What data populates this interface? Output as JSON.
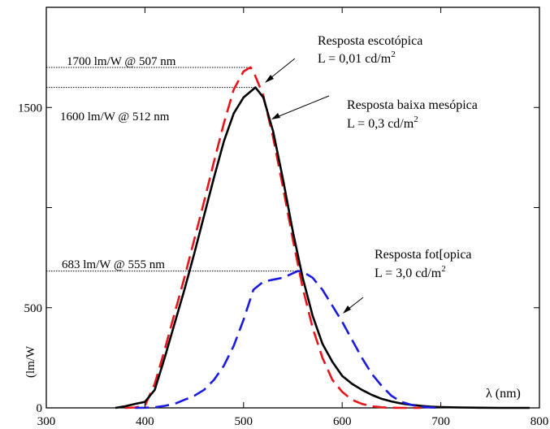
{
  "chart_data": {
    "type": "line",
    "title": "",
    "xlabel": "λ (nm)",
    "ylabel": "(lm/W",
    "xlim": [
      300,
      800
    ],
    "ylim": [
      0,
      2000
    ],
    "x_ticks": [
      300,
      400,
      500,
      600,
      700,
      800
    ],
    "y_ticks": [
      0,
      500,
      1500
    ],
    "grid": false,
    "series": [
      {
        "name": "Resposta escotópica",
        "color": "#e8141b",
        "dash": "dashed",
        "x": [
          380,
          390,
          400,
          410,
          420,
          430,
          440,
          450,
          460,
          470,
          480,
          490,
          500,
          507,
          510,
          520,
          530,
          540,
          550,
          560,
          570,
          580,
          590,
          600,
          610,
          620,
          630,
          640,
          650,
          660,
          670,
          680
        ],
        "y": [
          0,
          2,
          10,
          120,
          290,
          470,
          650,
          840,
          1030,
          1230,
          1420,
          1590,
          1680,
          1700,
          1680,
          1560,
          1350,
          1100,
          840,
          600,
          400,
          250,
          140,
          80,
          40,
          20,
          8,
          3,
          1,
          0,
          0,
          0
        ]
      },
      {
        "name": "Resposta baixa mesópica",
        "color": "#000000",
        "dash": "solid",
        "x": [
          370,
          380,
          390,
          400,
          410,
          420,
          430,
          440,
          450,
          460,
          470,
          480,
          490,
          500,
          512,
          520,
          530,
          540,
          550,
          560,
          570,
          580,
          590,
          600,
          610,
          620,
          630,
          640,
          650,
          660,
          670,
          680,
          690,
          700,
          720,
          740,
          760,
          780,
          790
        ],
        "y": [
          0,
          8,
          20,
          30,
          90,
          250,
          420,
          590,
          770,
          960,
          1150,
          1330,
          1470,
          1550,
          1600,
          1550,
          1380,
          1140,
          880,
          650,
          460,
          320,
          230,
          160,
          120,
          90,
          65,
          45,
          32,
          22,
          15,
          10,
          6,
          4,
          2,
          1,
          0,
          0,
          0
        ]
      },
      {
        "name": "Resposta fot[opica",
        "color": "#1a1ae0",
        "dash": "dashed",
        "x": [
          390,
          400,
          410,
          420,
          430,
          440,
          450,
          460,
          470,
          480,
          490,
          500,
          510,
          520,
          530,
          540,
          555,
          560,
          570,
          580,
          590,
          600,
          610,
          620,
          630,
          640,
          650,
          660,
          670,
          680,
          690,
          700
        ],
        "y": [
          0,
          1,
          3,
          10,
          20,
          40,
          60,
          90,
          140,
          210,
          310,
          440,
          590,
          630,
          640,
          650,
          683,
          680,
          650,
          590,
          510,
          430,
          340,
          250,
          170,
          110,
          60,
          30,
          15,
          6,
          2,
          0
        ]
      }
    ],
    "annotations": [
      {
        "text": "1700 lm/W @ 507 nm",
        "x": 507,
        "y": 1700
      },
      {
        "text": "1600 lm/W @ 512 nm",
        "x": 512,
        "y": 1600
      },
      {
        "text": "683 lm/W @ 555 nm",
        "x": 555,
        "y": 683
      }
    ],
    "notes": [
      {
        "line1": "Resposta escotópica",
        "line2": "L = 0,01 cd/m",
        "sup": "2"
      },
      {
        "line1": "Resposta baixa mesópica",
        "line2": "L = 0,3 cd/m",
        "sup": "2"
      },
      {
        "line1": "Resposta fot[opica",
        "line2": "L = 3,0 cd/m",
        "sup": "2"
      }
    ]
  }
}
